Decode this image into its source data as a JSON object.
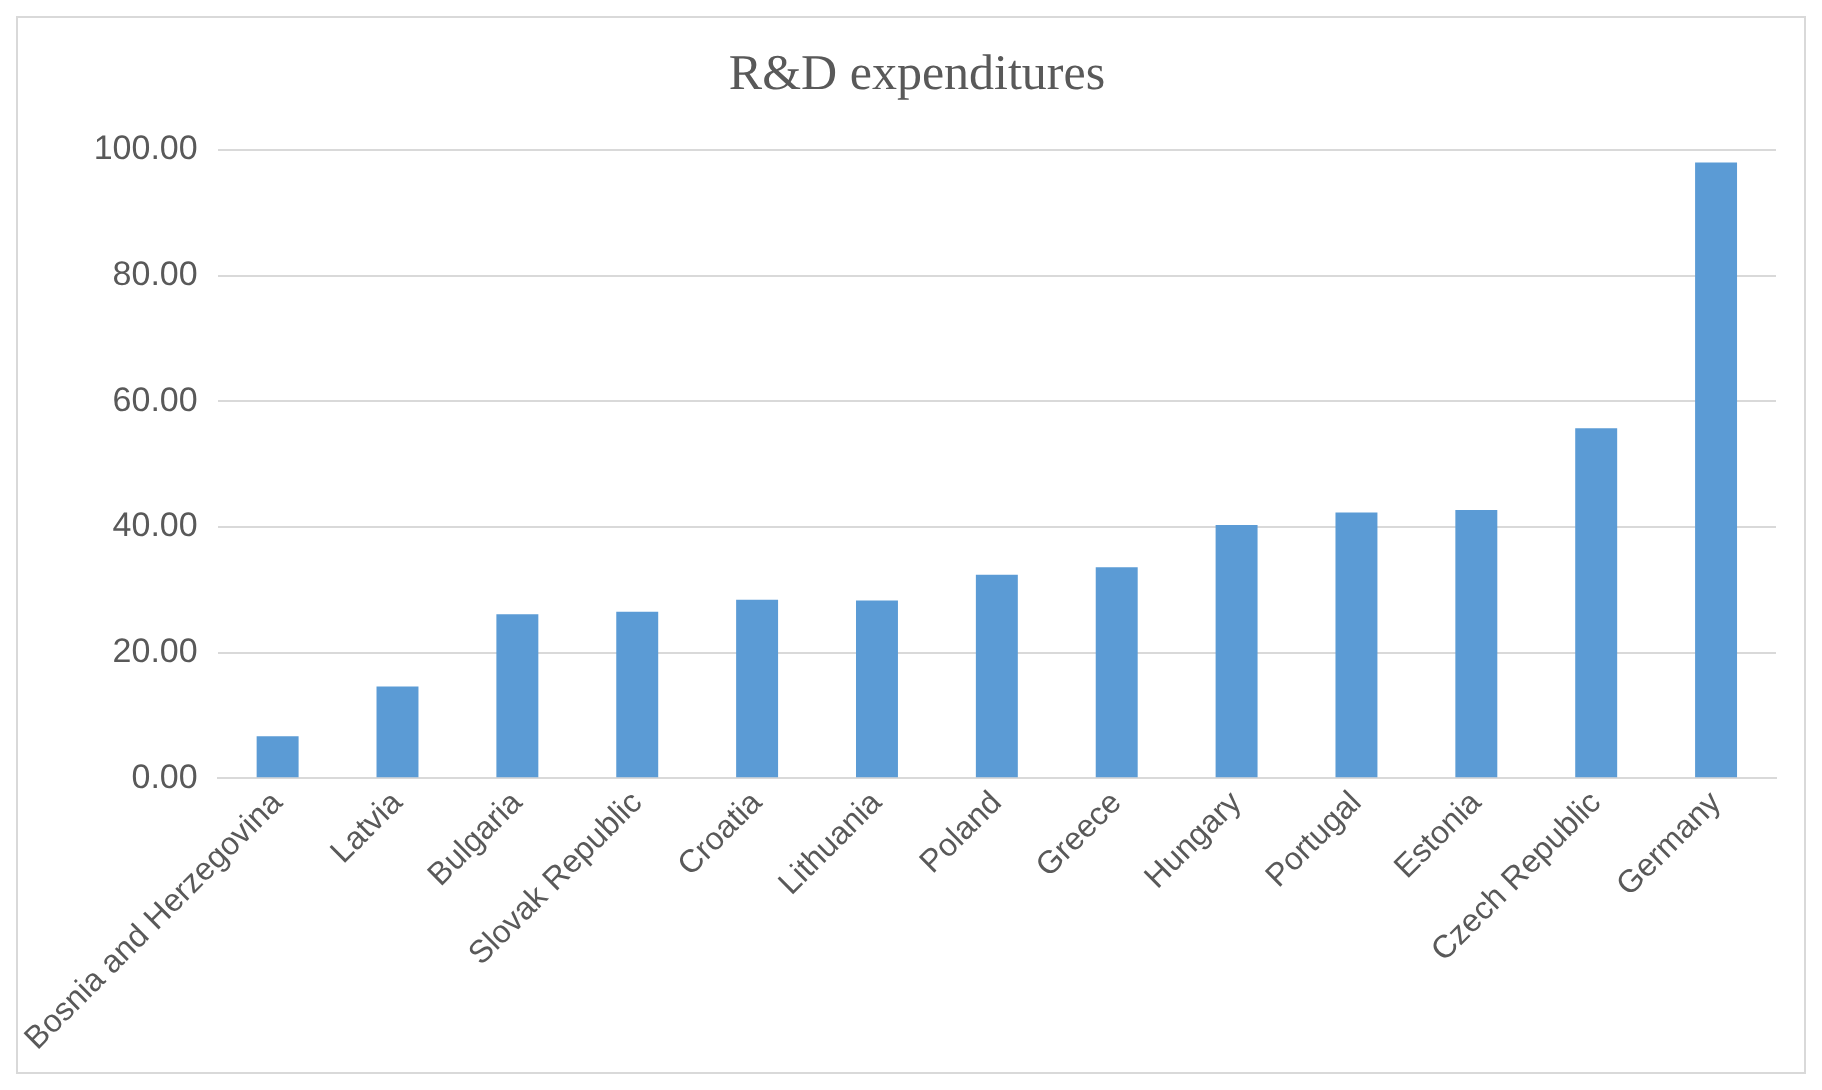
{
  "chart_data": {
    "type": "bar",
    "title": "R&D expenditures",
    "categories": [
      "Bosnia and Herzegovina",
      "Latvia",
      "Bulgaria",
      "Slovak Republic",
      "Croatia",
      "Lithuania",
      "Poland",
      "Greece",
      "Hungary",
      "Portugal",
      "Estonia",
      "Czech Republic",
      "Germany"
    ],
    "values": [
      6.7,
      14.6,
      26.1,
      26.5,
      28.4,
      28.3,
      32.4,
      33.6,
      40.3,
      42.3,
      42.7,
      55.7,
      98.0
    ],
    "color": "#5b9bd5",
    "ylim": [
      0,
      100
    ],
    "yticks": [
      {
        "value": 0,
        "label": "0.00"
      },
      {
        "value": 20,
        "label": "20.00"
      },
      {
        "value": 40,
        "label": "40.00"
      },
      {
        "value": 60,
        "label": "60.00"
      },
      {
        "value": 80,
        "label": "80.00"
      },
      {
        "value": 100,
        "label": "100.00"
      }
    ],
    "grid": "y",
    "legend": false
  }
}
